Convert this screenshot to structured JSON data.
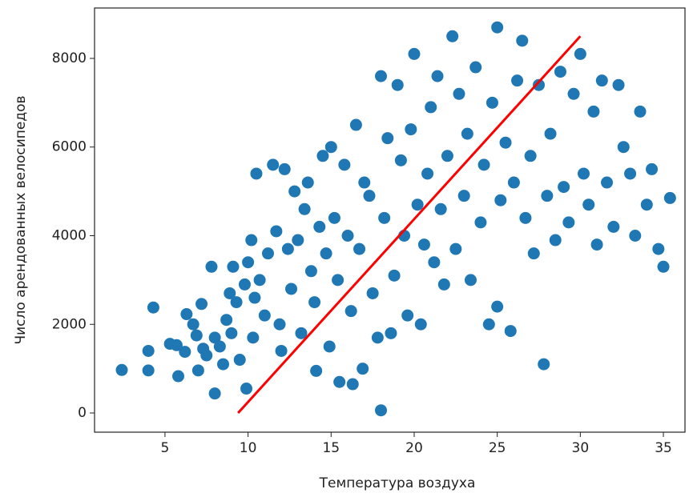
{
  "chart_data": {
    "type": "scatter",
    "xlabel": "Температура воздуха",
    "ylabel": "Число арендованных велосипедов",
    "xlim": [
      0.76,
      36.3
    ],
    "ylim": [
      -433,
      9137
    ],
    "xticks": [
      5,
      10,
      15,
      20,
      25,
      30,
      35
    ],
    "yticks": [
      0,
      2000,
      4000,
      6000,
      8000
    ],
    "series": [
      {
        "type": "scatter",
        "color": "#1f77b4",
        "x": [
          2.4,
          4,
          4,
          4.3,
          5.3,
          5.7,
          5.8,
          6.2,
          6.3,
          6.7,
          6.9,
          7,
          7.2,
          7.3,
          7.5,
          7.8,
          8,
          8,
          8.3,
          8.5,
          8.7,
          8.9,
          9,
          9.1,
          9.3,
          9.5,
          9.8,
          9.9,
          10,
          10.2,
          10.3,
          10.4,
          10.5,
          10.7,
          11,
          11.2,
          11.5,
          11.7,
          11.9,
          12,
          12.2,
          12.4,
          12.6,
          12.8,
          13,
          13.2,
          13.4,
          13.6,
          13.8,
          14,
          14.1,
          14.3,
          14.5,
          14.7,
          14.9,
          15,
          15.2,
          15.4,
          15.5,
          15.8,
          16,
          16.2,
          16.3,
          16.5,
          16.7,
          16.9,
          17,
          17.3,
          17.5,
          17.8,
          18,
          18,
          18.2,
          18.4,
          18.6,
          18.8,
          19,
          19.2,
          19.4,
          19.6,
          19.8,
          20,
          20.2,
          20.4,
          20.6,
          20.8,
          21,
          21.2,
          21.4,
          21.6,
          21.8,
          22,
          22.3,
          22.5,
          22.7,
          23,
          23.2,
          23.4,
          23.7,
          24,
          24.2,
          24.5,
          24.7,
          25,
          25,
          25.2,
          25.5,
          25.8,
          26,
          26.2,
          26.5,
          26.7,
          27,
          27.2,
          27.5,
          27.8,
          28,
          28.2,
          28.5,
          28.8,
          29,
          29.3,
          29.6,
          30,
          30.2,
          30.5,
          30.8,
          31,
          31.3,
          31.6,
          32,
          32.3,
          32.6,
          33,
          33.3,
          33.6,
          34,
          34.3,
          34.7,
          35,
          35.4
        ],
        "values": [
          970,
          960,
          1400,
          2380,
          1560,
          1530,
          830,
          1380,
          2230,
          2000,
          1750,
          960,
          2460,
          1450,
          1300,
          3300,
          1700,
          440,
          1500,
          1100,
          2100,
          2700,
          1800,
          3300,
          2500,
          1200,
          2900,
          550,
          3400,
          3900,
          1700,
          2600,
          5400,
          3000,
          2200,
          3600,
          5600,
          4100,
          2000,
          1400,
          5500,
          3700,
          2800,
          5000,
          3900,
          1800,
          4600,
          5200,
          3200,
          2500,
          950,
          4200,
          5800,
          3600,
          1500,
          6000,
          4400,
          3000,
          700,
          5600,
          4000,
          2300,
          650,
          6500,
          3700,
          1000,
          5200,
          4900,
          2700,
          1700,
          60,
          7600,
          4400,
          6200,
          1800,
          3100,
          7400,
          5700,
          4000,
          2200,
          6400,
          8100,
          4700,
          2000,
          3800,
          5400,
          6900,
          3400,
          7600,
          4600,
          2900,
          5800,
          8500,
          3700,
          7200,
          4900,
          6300,
          3000,
          7800,
          4300,
          5600,
          2000,
          7000,
          8700,
          2400,
          4800,
          6100,
          1850,
          5200,
          7500,
          8400,
          4400,
          5800,
          3600,
          7400,
          1100,
          4900,
          6300,
          3900,
          7700,
          5100,
          4300,
          7200,
          8100,
          5400,
          4700,
          6800,
          3800,
          7500,
          5200,
          4200,
          7400,
          6000,
          5400,
          4000,
          6800,
          4700,
          5500,
          3700,
          3300,
          4850
        ]
      },
      {
        "type": "line",
        "color": "#ff0000",
        "x": [
          9.4,
          30
        ],
        "values": [
          0,
          8500
        ]
      }
    ]
  }
}
